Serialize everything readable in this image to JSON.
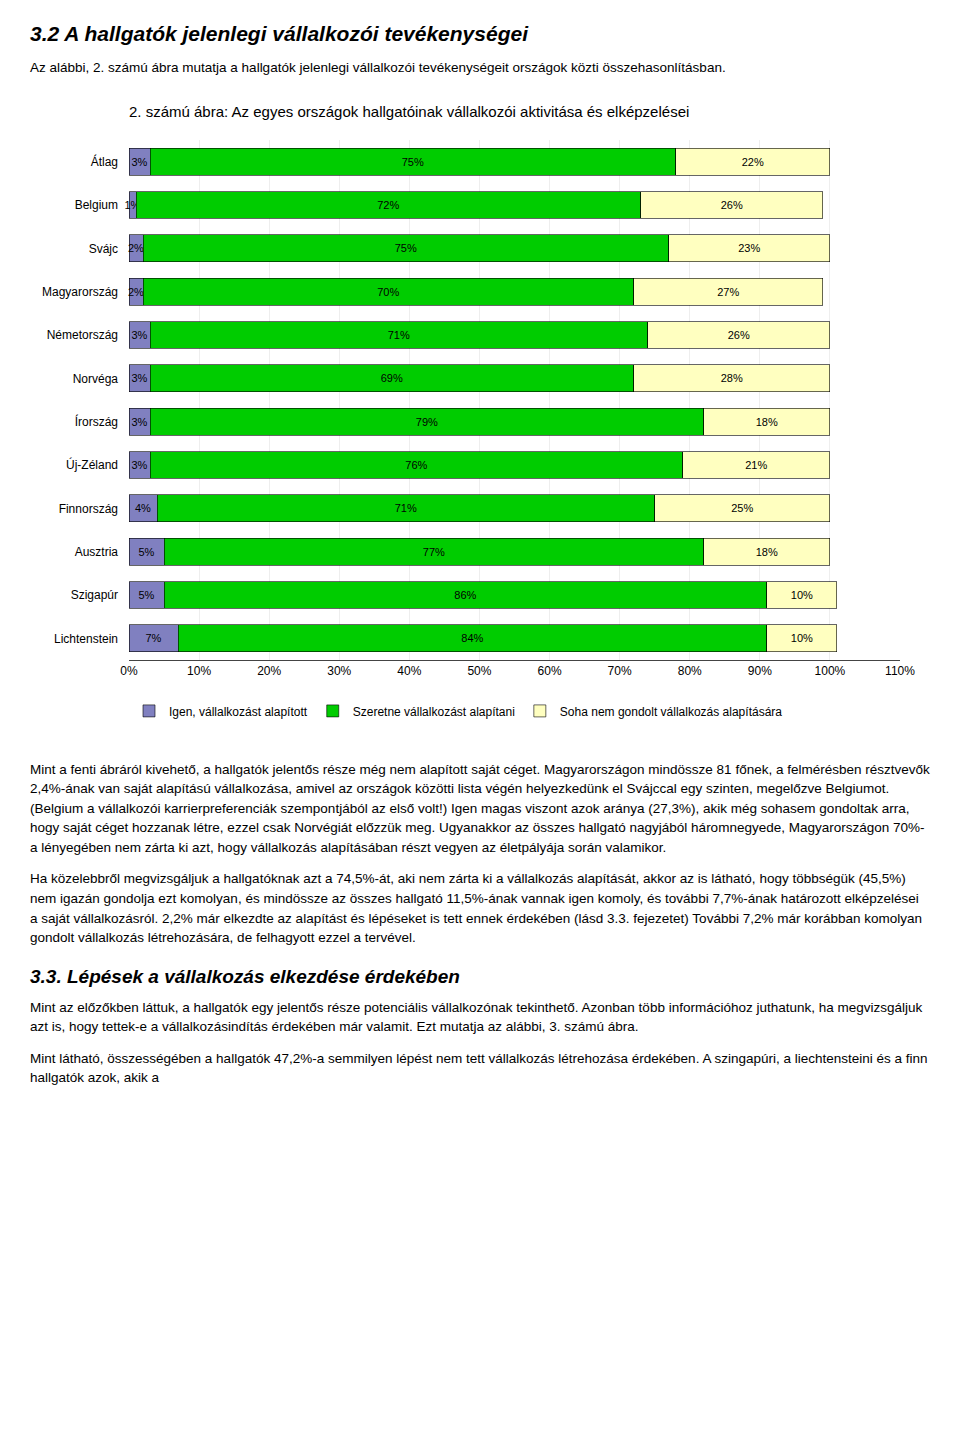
{
  "heading": "3.2 A hallgatók jelenlegi vállalkozói tevékenységei",
  "intro": "Az alábbi, 2. számú ábra mutatja a hallgatók jelenlegi vállalkozói tevékenységeit országok közti összehasonlításban.",
  "chart_data": {
    "type": "bar",
    "title": "2. számú ábra: Az egyes országok hallgatóinak vállalkozói aktivitása és elképzelései",
    "orientation": "horizontal",
    "stacked": true,
    "data_labels": true,
    "grid": true,
    "legend": "bottom",
    "categories": [
      "Átlag",
      "Belgium",
      "Svájc",
      "Magyarország",
      "Németország",
      "Norvéga",
      "Írország",
      "Új-Zéland",
      "Finnország",
      "Ausztria",
      "Szigapúr",
      "Lichtenstein"
    ],
    "series": [
      {
        "name": "Igen, vállalkozást alapított",
        "color": "#8080C0",
        "values": [
          3,
          1,
          2,
          2,
          3,
          3,
          3,
          3,
          4,
          5,
          5,
          7
        ],
        "value_labels": [
          "3%",
          "1%",
          "2%",
          "2%",
          "3%",
          "3%",
          "3%",
          "3%",
          "4%",
          "5%",
          "5%",
          "7%"
        ]
      },
      {
        "name": "Szeretne vállalkozást alapítani",
        "color": "#00CC00",
        "values": [
          75,
          72,
          75,
          70,
          71,
          69,
          79,
          76,
          71,
          77,
          86,
          84
        ],
        "value_labels": [
          "75%",
          "72%",
          "75%",
          "70%",
          "71%",
          "69%",
          "79%",
          "76%",
          "71%",
          "77%",
          "86%",
          "84%"
        ]
      },
      {
        "name": "Soha nem gondolt vállalkozás alapítására",
        "color": "#FFFFC0",
        "values": [
          22,
          26,
          23,
          27,
          26,
          28,
          18,
          21,
          25,
          18,
          10,
          10
        ],
        "value_labels": [
          "22%",
          "26%",
          "23%",
          "27%",
          "26%",
          "28%",
          "18%",
          "21%",
          "25%",
          "18%",
          "10%",
          "10%"
        ]
      }
    ],
    "xlim": [
      0,
      110
    ],
    "xticks": [
      {
        "value": 0,
        "label": "0%"
      },
      {
        "value": 10,
        "label": "10%"
      },
      {
        "value": 20,
        "label": "20%"
      },
      {
        "value": 30,
        "label": "30%"
      },
      {
        "value": 40,
        "label": "40%"
      },
      {
        "value": 50,
        "label": "50%"
      },
      {
        "value": 60,
        "label": "60%"
      },
      {
        "value": 70,
        "label": "70%"
      },
      {
        "value": 80,
        "label": "80%"
      },
      {
        "value": 90,
        "label": "90%"
      },
      {
        "value": 100,
        "label": "100%"
      },
      {
        "value": 110,
        "label": "110%"
      }
    ]
  },
  "para1": "Mint a fenti ábráról kivehető, a hallgatók jelentős része még nem alapított saját céget. Magyarországon mindössze 81 főnek, a felmérésben résztvevők 2,4%-ának van saját alapítású vállalkozása, amivel az országok közötti lista végén helyezkedünk el Svájccal egy szinten, megelőzve Belgiumot. (Belgium a vállalkozói karrierpreferenciák szempontjából az első volt!) Igen magas viszont azok aránya (27,3%), akik még sohasem gondoltak arra, hogy saját céget hozzanak létre, ezzel csak Norvégiát előzzük meg. Ugyanakkor az összes hallgató nagyjából háromnegyede, Magyarországon 70%-a lényegében nem zárta ki azt, hogy vállalkozás alapításában részt vegyen az életpályája során valamikor.",
  "para2": "Ha közelebbről megvizsgáljuk a hallgatóknak azt a 74,5%-át, aki nem zárta ki a vállalkozás alapítását, akkor az is látható, hogy többségük (45,5%) nem igazán gondolja ezt komolyan, és mindössze az összes hallgató 11,5%-ának vannak igen komoly, és további 7,7%-ának határozott elképzelései a saját vállalkozásról. 2,2% már elkezdte az alapítást és lépéseket is tett ennek érdekében (lásd 3.3. fejezetet) További 7,2% már korábban komolyan gondolt vállalkozás létrehozására, de felhagyott ezzel a tervével.",
  "section33": "3.3. Lépések a vállalkozás elkezdése érdekében",
  "para3": "Mint az előzőkben láttuk, a hallgatók egy jelentős része potenciális vállalkozónak tekinthető. Azonban több információhoz juthatunk, ha megvizsgáljuk azt is, hogy tettek-e a vállalkozásindítás érdekében már valamit. Ezt mutatja az alábbi, 3. számú ábra.",
  "para4": "Mint látható, összességében a hallgatók 47,2%-a semmilyen lépést nem tett vállalkozás létrehozása érdekében. A szingapúri, a liechtensteini és a finn hallgatók azok, akik a"
}
